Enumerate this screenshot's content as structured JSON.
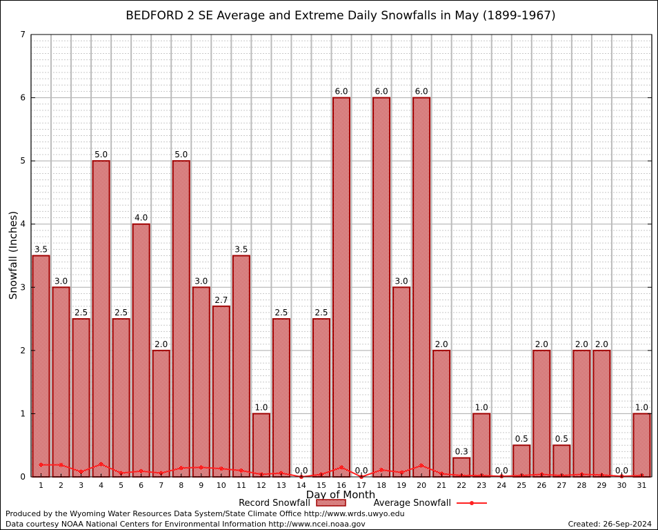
{
  "chart_data": {
    "type": "bar",
    "title": "BEDFORD 2 SE Average and Extreme Daily Snowfalls in May (1899-1967)",
    "xlabel": "Day of Month",
    "ylabel": "Snowfall (Inches)",
    "ylim": [
      0,
      7
    ],
    "yticks": [
      0,
      1,
      2,
      3,
      4,
      5,
      6,
      7
    ],
    "grid": true,
    "legend_placement": "bottom",
    "categories": [
      "1",
      "2",
      "3",
      "4",
      "5",
      "6",
      "7",
      "8",
      "9",
      "10",
      "11",
      "12",
      "13",
      "14",
      "15",
      "16",
      "17",
      "18",
      "19",
      "20",
      "21",
      "22",
      "23",
      "24",
      "25",
      "26",
      "27",
      "28",
      "29",
      "30",
      "31"
    ],
    "series": [
      {
        "name": "Record Snowfall",
        "type": "bar",
        "color": "#b00000",
        "values": [
          3.5,
          3.0,
          2.5,
          5.0,
          2.5,
          4.0,
          2.0,
          5.0,
          3.0,
          2.7,
          3.5,
          1.0,
          2.5,
          0.0,
          2.5,
          6.0,
          0.0,
          6.0,
          3.0,
          6.0,
          2.0,
          0.3,
          1.0,
          0.0,
          0.5,
          2.0,
          0.5,
          2.0,
          2.0,
          0.0,
          1.0
        ]
      },
      {
        "name": "Average Snowfall",
        "type": "line",
        "color": "#ff2020",
        "values": [
          0.19,
          0.19,
          0.08,
          0.2,
          0.06,
          0.09,
          0.06,
          0.14,
          0.15,
          0.13,
          0.1,
          0.04,
          0.06,
          0.0,
          0.04,
          0.15,
          0.0,
          0.11,
          0.07,
          0.18,
          0.05,
          0.02,
          0.02,
          0.01,
          0.02,
          0.04,
          0.02,
          0.04,
          0.03,
          0.01,
          0.02
        ]
      }
    ]
  },
  "footer": {
    "produced_by": "Produced by the Wyoming Water Resources Data System/State Climate Office http://www.wrds.uwyo.edu",
    "courtesy": "Data courtesy NOAA National Centers for Environmental Information http://www.ncei.noaa.gov",
    "created": "Created: 26-Sep-2024"
  }
}
